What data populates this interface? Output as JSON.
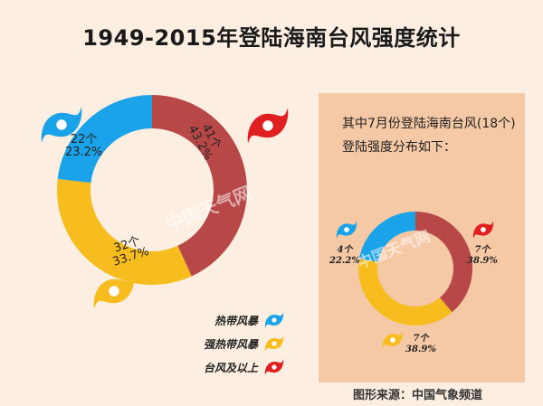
{
  "title": "1949-2015年登陆海南台风强度统计",
  "note": "其中7月份登陆海南台风(18个)登陆强度分布如下：",
  "source": "图形来源：中国气象频道",
  "watermark": "中国天气网",
  "colors": {
    "tropical_storm": "#1aa3e8",
    "severe_tropical_storm": "#f7bc1e",
    "typhoon_and_above": "#b84848"
  },
  "legend": [
    {
      "label": "热带风暴",
      "color": "#1aa3e8",
      "icon": "typhoon-icon"
    },
    {
      "label": "强热带风暴",
      "color": "#f7bc1e",
      "icon": "typhoon-icon"
    },
    {
      "label": "台风及以上",
      "color": "#e02020",
      "icon": "typhoon-icon"
    }
  ],
  "chart_data": [
    {
      "type": "pie",
      "categories": [
        "热带风暴",
        "强热带风暴",
        "台风及以上"
      ],
      "values": [
        22,
        32,
        41
      ],
      "percent_labels": [
        "23.2%",
        "33.7%",
        "43.2%"
      ],
      "count_labels": [
        "22个",
        "32个",
        "41个"
      ],
      "donut": true
    },
    {
      "type": "pie",
      "categories": [
        "热带风暴",
        "强热带风暴",
        "台风及以上"
      ],
      "values": [
        4,
        7,
        7
      ],
      "percent_labels": [
        "22.2%",
        "38.9%",
        "38.9%"
      ],
      "count_labels": [
        "4个",
        "7个",
        "7个"
      ],
      "donut": true
    }
  ]
}
